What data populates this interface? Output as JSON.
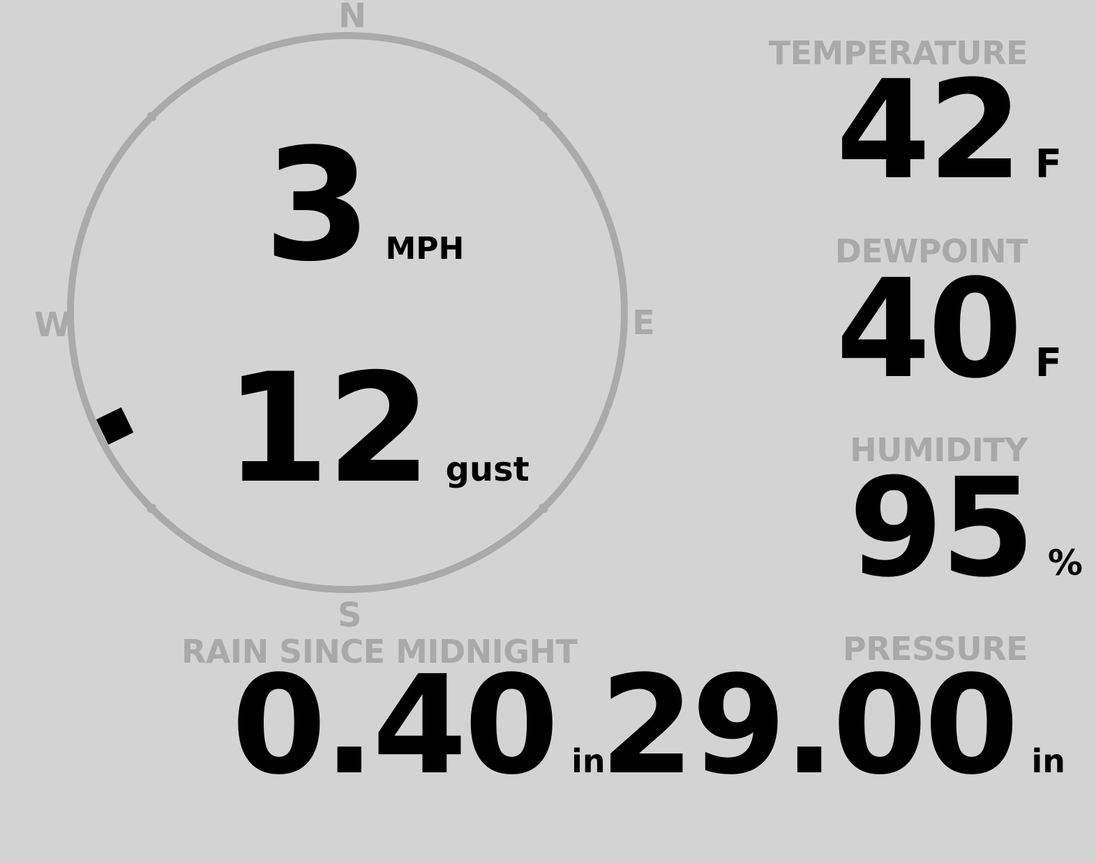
{
  "colors": {
    "background": "#d3d3d3",
    "ring": "#aaaaaa",
    "label": "#a9a9a9",
    "value": "#000000"
  },
  "compass": {
    "north": "N",
    "south": "S",
    "east": "E",
    "west": "W",
    "wind_direction_deg": 244,
    "wind_direction_marker_icon": "square-marker-icon"
  },
  "wind": {
    "speed": "3",
    "speed_unit": "MPH",
    "gust": "12",
    "gust_label": "gust"
  },
  "temperature": {
    "label": "TEMPERATURE",
    "value": "42",
    "unit": "F"
  },
  "dewpoint": {
    "label": "DEWPOINT",
    "value": "40",
    "unit": "F"
  },
  "humidity": {
    "label": "HUMIDITY",
    "value": "95",
    "unit": "%"
  },
  "rain": {
    "label": "RAIN SINCE MIDNIGHT",
    "value": "0.40",
    "unit": "in"
  },
  "pressure": {
    "label": "PRESSURE",
    "value": "29.00",
    "unit": "in"
  }
}
